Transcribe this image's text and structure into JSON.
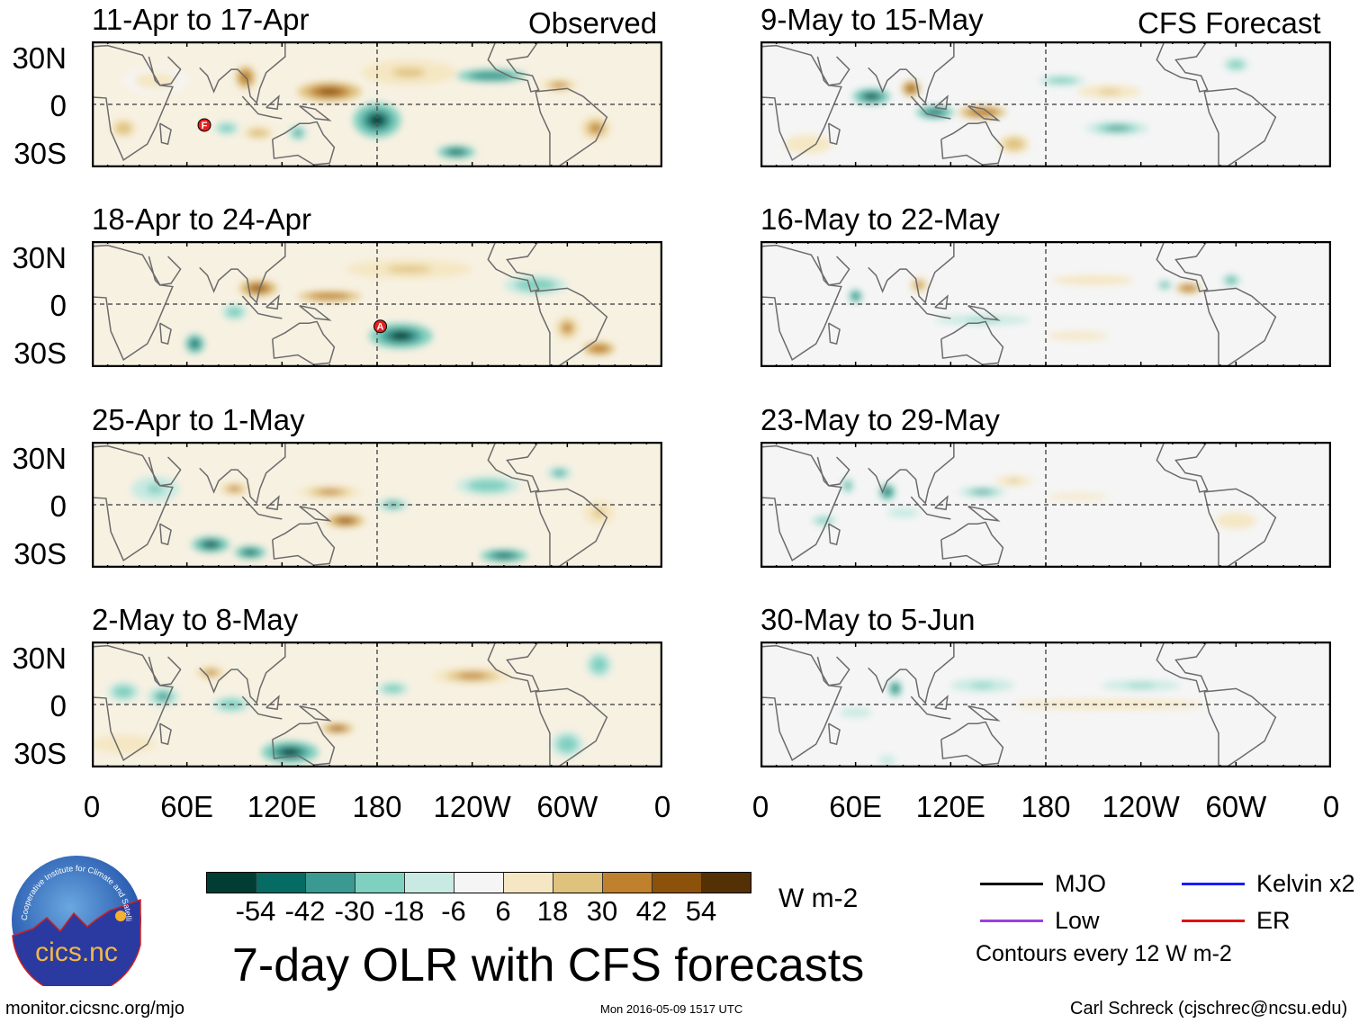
{
  "headers": {
    "observed": "Observed",
    "forecast": "CFS Forecast"
  },
  "lat_labels": [
    "30N",
    "0",
    "30S"
  ],
  "lon_labels": [
    "0",
    "60E",
    "120E",
    "180",
    "120W",
    "60W",
    "0"
  ],
  "panels": [
    {
      "title": "11-Apr to 17-Apr",
      "type": "observed",
      "storms": [
        {
          "label": "F",
          "lon": 71,
          "lat": -13
        }
      ],
      "blobs": [
        [
          150,
          8,
          20,
          6,
          50
        ],
        [
          97,
          17,
          6,
          7,
          40
        ],
        [
          180,
          -10,
          15,
          11,
          -55
        ],
        [
          230,
          -30,
          12,
          4,
          -45
        ],
        [
          252,
          18,
          22,
          4,
          -42
        ],
        [
          130,
          -18,
          6,
          5,
          -40
        ],
        [
          85,
          -15,
          8,
          4,
          -30
        ],
        [
          318,
          -15,
          10,
          8,
          35
        ],
        [
          20,
          -15,
          8,
          6,
          25
        ],
        [
          200,
          20,
          30,
          8,
          18
        ],
        [
          40,
          15,
          20,
          8,
          12
        ],
        [
          295,
          12,
          12,
          4,
          30
        ],
        [
          105,
          -18,
          10,
          4,
          25
        ]
      ]
    },
    {
      "title": "9-May to 15-May",
      "type": "forecast",
      "storms": [],
      "blobs": [
        [
          70,
          5,
          12,
          5,
          -55
        ],
        [
          95,
          10,
          6,
          5,
          45
        ],
        [
          110,
          -5,
          12,
          4,
          -45
        ],
        [
          140,
          -5,
          15,
          4,
          40
        ],
        [
          225,
          -15,
          20,
          4,
          -40
        ],
        [
          190,
          15,
          15,
          3,
          -25
        ],
        [
          220,
          8,
          20,
          4,
          20
        ],
        [
          30,
          -25,
          15,
          6,
          15
        ],
        [
          300,
          25,
          8,
          4,
          -25
        ],
        [
          160,
          -25,
          10,
          6,
          25
        ]
      ]
    },
    {
      "title": "18-Apr to 24-Apr",
      "type": "observed",
      "storms": [
        {
          "label": "A",
          "lon": 182,
          "lat": -14
        }
      ],
      "blobs": [
        [
          105,
          10,
          12,
          5,
          48
        ],
        [
          150,
          5,
          20,
          3,
          40
        ],
        [
          195,
          -20,
          20,
          8,
          -55
        ],
        [
          65,
          -25,
          6,
          6,
          -45
        ],
        [
          300,
          -15,
          8,
          8,
          30
        ],
        [
          320,
          -28,
          10,
          4,
          40
        ],
        [
          200,
          22,
          40,
          6,
          18
        ],
        [
          280,
          12,
          20,
          6,
          -25
        ],
        [
          90,
          -5,
          8,
          5,
          -25
        ]
      ]
    },
    {
      "title": "16-May to 22-May",
      "type": "forecast",
      "storms": [],
      "blobs": [
        [
          270,
          10,
          8,
          3,
          40
        ],
        [
          255,
          12,
          5,
          3,
          -40
        ],
        [
          297,
          15,
          6,
          4,
          -40
        ],
        [
          60,
          5,
          4,
          4,
          -45
        ],
        [
          100,
          12,
          6,
          5,
          30
        ],
        [
          140,
          -10,
          30,
          3,
          -20
        ],
        [
          200,
          -20,
          30,
          4,
          10
        ],
        [
          210,
          15,
          40,
          5,
          10
        ]
      ]
    },
    {
      "title": "25-Apr to 1-May",
      "type": "observed",
      "storms": [],
      "blobs": [
        [
          75,
          -25,
          12,
          5,
          -55
        ],
        [
          100,
          -30,
          10,
          4,
          -45
        ],
        [
          160,
          -10,
          12,
          4,
          45
        ],
        [
          190,
          0,
          10,
          4,
          -40
        ],
        [
          260,
          -32,
          15,
          4,
          -45
        ],
        [
          150,
          8,
          20,
          4,
          30
        ],
        [
          90,
          10,
          10,
          4,
          38
        ],
        [
          295,
          20,
          8,
          4,
          -40
        ],
        [
          250,
          12,
          20,
          6,
          -25
        ],
        [
          40,
          10,
          15,
          8,
          -20
        ],
        [
          320,
          -5,
          10,
          8,
          20
        ]
      ]
    },
    {
      "title": "23-May to 29-May",
      "type": "forecast",
      "storms": [],
      "blobs": [
        [
          80,
          8,
          5,
          5,
          -45
        ],
        [
          55,
          12,
          4,
          5,
          -35
        ],
        [
          140,
          8,
          15,
          3,
          -40
        ],
        [
          160,
          15,
          12,
          3,
          20
        ],
        [
          40,
          -10,
          8,
          3,
          -30
        ],
        [
          90,
          -5,
          10,
          3,
          -18
        ],
        [
          200,
          5,
          30,
          3,
          10
        ],
        [
          300,
          -10,
          20,
          8,
          10
        ]
      ]
    },
    {
      "title": "2-May to 8-May",
      "type": "observed",
      "storms": [],
      "blobs": [
        [
          125,
          -30,
          18,
          7,
          -55
        ],
        [
          155,
          -15,
          10,
          3,
          48
        ],
        [
          20,
          8,
          10,
          6,
          -30
        ],
        [
          45,
          5,
          10,
          6,
          -40
        ],
        [
          88,
          0,
          12,
          5,
          -30
        ],
        [
          75,
          20,
          10,
          4,
          30
        ],
        [
          190,
          10,
          10,
          4,
          -30
        ],
        [
          240,
          18,
          25,
          5,
          30
        ],
        [
          300,
          -25,
          10,
          8,
          -30
        ],
        [
          320,
          25,
          8,
          8,
          -30
        ],
        [
          20,
          -25,
          20,
          6,
          15
        ]
      ]
    },
    {
      "title": "30-May to 5-Jun",
      "type": "forecast",
      "storms": [],
      "blobs": [
        [
          85,
          10,
          4,
          5,
          -45
        ],
        [
          140,
          12,
          20,
          4,
          -20
        ],
        [
          220,
          0,
          60,
          3,
          15
        ],
        [
          240,
          12,
          25,
          3,
          -20
        ],
        [
          60,
          -5,
          10,
          3,
          -15
        ],
        [
          80,
          -35,
          5,
          3,
          -15
        ]
      ]
    }
  ],
  "colorbar": {
    "colors": [
      "#013d33",
      "#056b63",
      "#3a9990",
      "#80d0c0",
      "#c8eae2",
      "#f5f5f5",
      "#f5e7c3",
      "#dfc27d",
      "#bf812d",
      "#8c510a",
      "#543005"
    ],
    "labels": [
      "-54",
      "-42",
      "-30",
      "-18",
      "-6",
      "6",
      "18",
      "30",
      "42",
      "54"
    ],
    "units": "W m-2"
  },
  "legend": {
    "items": [
      {
        "label": "MJO",
        "color": "#000000"
      },
      {
        "label": "Kelvin x2",
        "color": "#1a1aff"
      },
      {
        "label": "Low",
        "color": "#9b3fe0"
      },
      {
        "label": "ER",
        "color": "#e01010"
      }
    ],
    "contours": "Contours every 12 W m-2"
  },
  "title": "7-day OLR with CFS forecasts",
  "logo": {
    "text": "cics.nc",
    "ring": "Cooperative Institute for Climate and Satellites"
  },
  "footer": {
    "url": "monitor.cicsnc.org/mjo",
    "timestamp": "Mon 2016-05-09 1517 UTC",
    "author": "Carl Schreck (cjschrec@ncsu.edu)"
  }
}
